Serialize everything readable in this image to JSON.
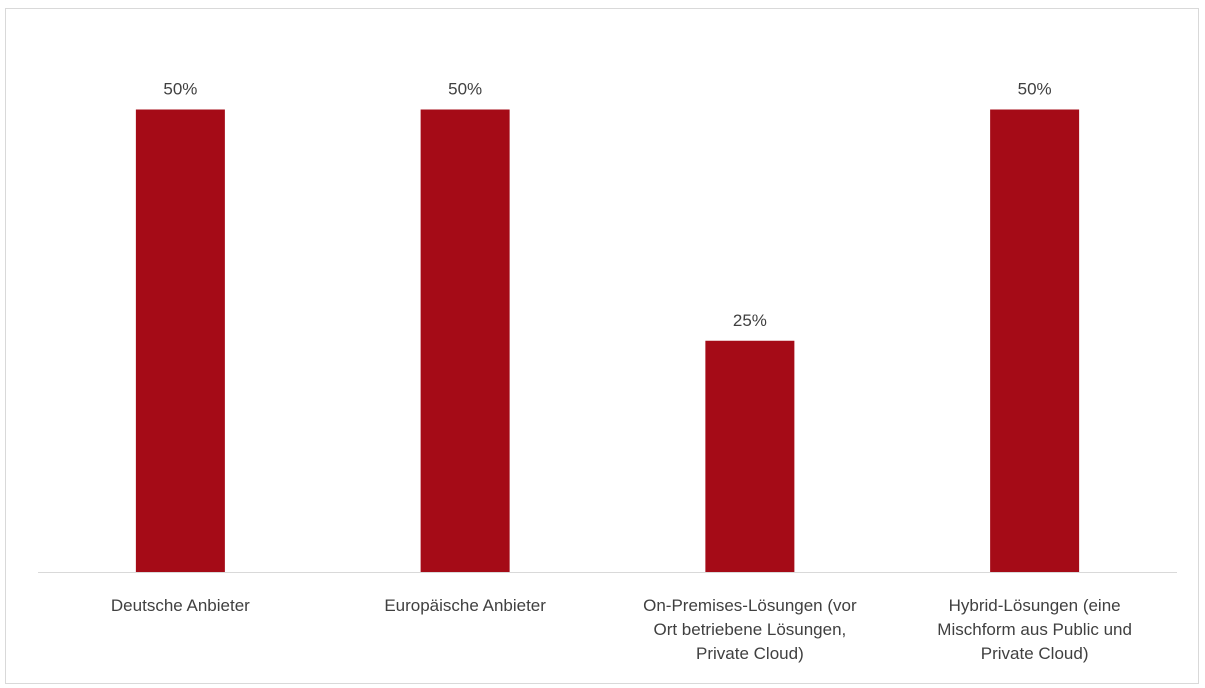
{
  "chart_data": {
    "type": "bar",
    "categories": [
      [
        "Deutsche Anbieter"
      ],
      [
        "Europäische Anbieter"
      ],
      [
        "On-Premises-Lösungen (vor",
        "Ort betriebene Lösungen,",
        "Private Cloud)"
      ],
      [
        "Hybrid-Lösungen (eine",
        "Mischform aus Public und",
        "Private Cloud)"
      ]
    ],
    "values": [
      50,
      50,
      25,
      50
    ],
    "data_labels": [
      "50%",
      "50%",
      "25%",
      "50%"
    ],
    "value_unit": "%",
    "ylim": [
      0,
      60
    ],
    "grid": false,
    "legend": "none",
    "bar_color": "#a50b17",
    "axis_color": "#d9d9d9",
    "label_color": "#404040"
  }
}
